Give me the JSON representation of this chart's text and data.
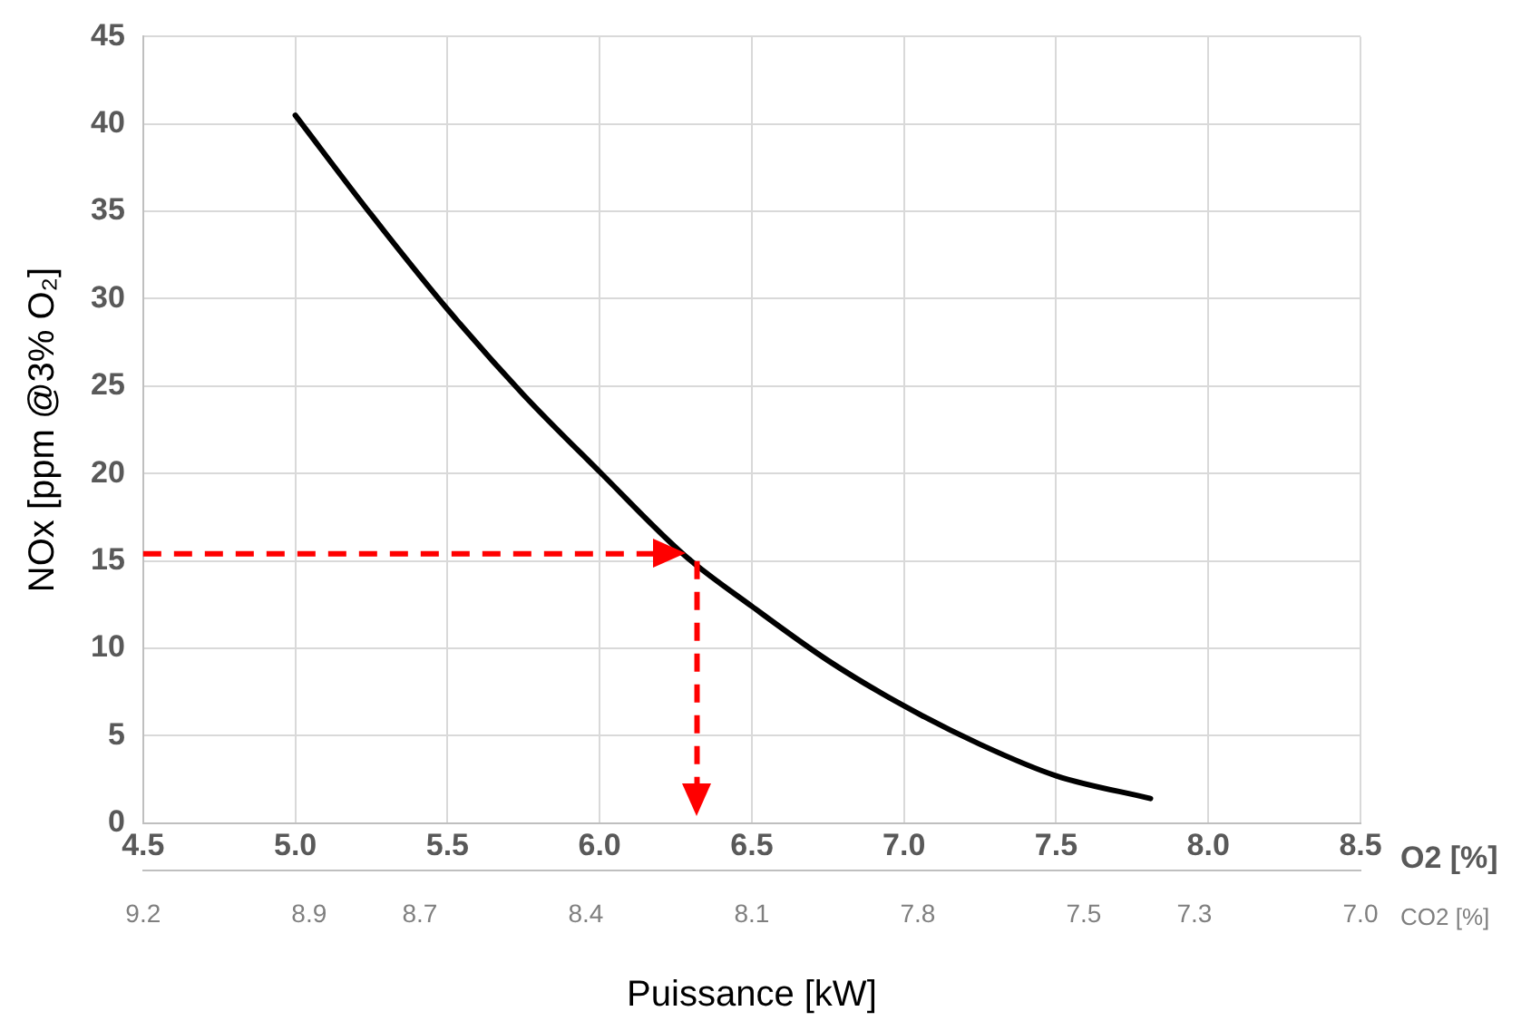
{
  "chart_data": {
    "type": "line",
    "xlabel": "O2 [%]",
    "x2label": "CO2 [%]",
    "ylabel": "NOx [ppm @3% O₂]",
    "annotations": [
      "Puissance [kW]"
    ],
    "x": [
      5.0,
      5.25,
      5.5,
      5.75,
      6.0,
      6.28,
      6.5,
      6.75,
      7.0,
      7.25,
      7.5,
      7.81
    ],
    "series": [
      {
        "color": "#000000",
        "values": [
          40.5,
          34.8,
          29.4,
          24.5,
          20.1,
          15.3,
          12.4,
          9.3,
          6.7,
          4.5,
          2.7,
          1.4
        ]
      }
    ],
    "xlim": [
      4.5,
      8.5
    ],
    "xticks": [
      4.5,
      {
        "value": 5,
        "label": "5.0"
      },
      5.5,
      {
        "value": 6,
        "label": "6.0"
      },
      6.5,
      {
        "value": 7,
        "label": "7.0"
      },
      7.5,
      {
        "value": 8,
        "label": "8.0"
      },
      8.5
    ],
    "x2lim": [
      9.2,
      7.0
    ],
    "x2ticks": [
      9.2,
      8.9,
      8.7,
      8.4,
      8.1,
      7.8,
      7.5,
      7.3,
      {
        "value": 7,
        "label": "7.0"
      }
    ],
    "ylim": [
      0,
      45
    ],
    "yticks": [
      0,
      5,
      10,
      15,
      20,
      25,
      30,
      35,
      40,
      45
    ],
    "ref_lines": [
      {
        "axis": "y",
        "value": 15.4,
        "color": "#ff0000",
        "line_style": "dashed"
      },
      {
        "axis": "x",
        "value": 6.32,
        "color": "#ff0000",
        "line_style": "dashed"
      }
    ],
    "grid": true,
    "marker": "none",
    "line_style": "solid"
  }
}
